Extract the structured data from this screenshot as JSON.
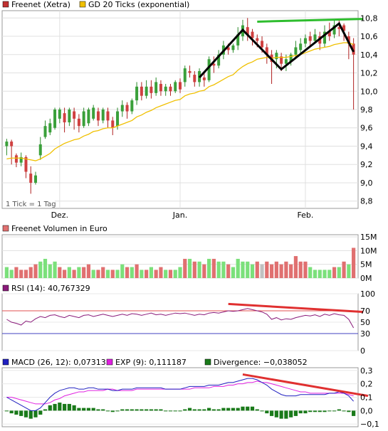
{
  "chart_data": [
    {
      "type": "candlestick",
      "legend": [
        {
          "label": "Freenet (Xetra)",
          "color": "#c03030"
        },
        {
          "label": "GD 20 Ticks (exponential)",
          "color": "#f0c000"
        }
      ],
      "tick_note": "1 Tick = 1 Tag",
      "y_ticks": [
        "10,8",
        "10,6",
        "10,4",
        "10,2",
        "10,0",
        "9,8",
        "9,6",
        "9,4",
        "9,2",
        "9,0",
        "8,8"
      ],
      "ylim": [
        8.72,
        10.88
      ],
      "x_ticks": [
        {
          "label": "Dez.",
          "index": 11
        },
        {
          "label": "Jan.",
          "index": 36
        },
        {
          "label": "Feb.",
          "index": 62
        }
      ],
      "candles": [
        [
          9.4,
          9.45,
          9.3,
          9.48
        ],
        [
          9.45,
          9.4,
          9.2,
          9.47
        ],
        [
          9.3,
          9.22,
          9.17,
          9.32
        ],
        [
          9.22,
          9.28,
          9.18,
          9.33
        ],
        [
          9.28,
          9.12,
          9.05,
          9.3
        ],
        [
          9.1,
          9.0,
          8.88,
          9.18
        ],
        [
          9.0,
          9.08,
          8.98,
          9.12
        ],
        [
          9.3,
          9.42,
          9.25,
          9.5
        ],
        [
          9.5,
          9.62,
          9.48,
          9.68
        ],
        [
          9.55,
          9.65,
          9.52,
          9.7
        ],
        [
          9.6,
          9.8,
          9.58,
          9.82
        ],
        [
          9.7,
          9.8,
          9.65,
          9.82
        ],
        [
          9.76,
          9.66,
          9.55,
          9.82
        ],
        [
          9.66,
          9.8,
          9.62,
          9.82
        ],
        [
          9.78,
          9.7,
          9.58,
          9.82
        ],
        [
          9.7,
          9.62,
          9.55,
          9.75
        ],
        [
          9.62,
          9.78,
          9.6,
          9.82
        ],
        [
          9.65,
          9.8,
          9.62,
          9.82
        ],
        [
          9.7,
          9.82,
          9.68,
          9.85
        ],
        [
          9.78,
          9.68,
          9.62,
          9.82
        ],
        [
          9.68,
          9.8,
          9.65,
          9.82
        ],
        [
          9.78,
          9.68,
          9.6,
          9.82
        ],
        [
          9.68,
          9.6,
          9.52,
          9.72
        ],
        [
          9.62,
          9.78,
          9.58,
          9.82
        ],
        [
          9.78,
          9.85,
          9.72,
          9.9
        ],
        [
          9.85,
          9.78,
          9.7,
          9.88
        ],
        [
          9.78,
          9.9,
          9.75,
          9.92
        ],
        [
          9.9,
          10.05,
          9.85,
          10.1
        ],
        [
          10.05,
          9.95,
          9.9,
          10.1
        ],
        [
          9.95,
          10.05,
          9.92,
          10.12
        ],
        [
          10.05,
          9.98,
          9.92,
          10.12
        ],
        [
          9.98,
          10.1,
          9.95,
          10.15
        ],
        [
          10.08,
          10.0,
          9.95,
          10.12
        ],
        [
          10.0,
          10.05,
          9.95,
          10.08
        ],
        [
          10.05,
          10.0,
          9.95,
          10.08
        ],
        [
          10.0,
          10.1,
          9.98,
          10.12
        ],
        [
          10.1,
          10.02,
          9.98,
          10.14
        ],
        [
          10.1,
          10.25,
          10.05,
          10.28
        ],
        [
          10.22,
          10.2,
          10.15,
          10.28
        ],
        [
          10.18,
          10.1,
          10.05,
          10.22
        ],
        [
          10.1,
          10.22,
          10.05,
          10.25
        ],
        [
          10.15,
          10.12,
          10.05,
          10.2
        ],
        [
          10.12,
          10.35,
          10.1,
          10.38
        ],
        [
          10.3,
          10.28,
          10.2,
          10.38
        ],
        [
          10.28,
          10.4,
          10.25,
          10.45
        ],
        [
          10.4,
          10.5,
          10.35,
          10.55
        ],
        [
          10.48,
          10.45,
          10.4,
          10.52
        ],
        [
          10.45,
          10.5,
          10.42,
          10.52
        ],
        [
          10.5,
          10.62,
          10.45,
          10.7
        ],
        [
          10.6,
          10.72,
          10.55,
          10.78
        ],
        [
          10.7,
          10.62,
          10.55,
          10.8
        ],
        [
          10.65,
          10.58,
          10.5,
          10.68
        ],
        [
          10.58,
          10.55,
          10.48,
          10.62
        ],
        [
          10.55,
          10.48,
          10.42,
          10.6
        ],
        [
          10.48,
          10.4,
          10.3,
          10.52
        ],
        [
          10.4,
          10.32,
          10.08,
          10.45
        ],
        [
          10.35,
          10.42,
          10.25,
          10.45
        ],
        [
          10.38,
          10.3,
          10.22,
          10.42
        ],
        [
          10.3,
          10.35,
          10.22,
          10.4
        ],
        [
          10.32,
          10.4,
          10.28,
          10.42
        ],
        [
          10.4,
          10.48,
          10.35,
          10.55
        ],
        [
          10.45,
          10.52,
          10.4,
          10.58
        ],
        [
          10.52,
          10.58,
          10.48,
          10.62
        ],
        [
          10.6,
          10.55,
          10.5,
          10.65
        ],
        [
          10.55,
          10.62,
          10.52,
          10.68
        ],
        [
          10.6,
          10.52,
          10.45,
          10.65
        ],
        [
          10.52,
          10.65,
          10.48,
          10.72
        ],
        [
          10.65,
          10.6,
          10.55,
          10.75
        ],
        [
          10.62,
          10.72,
          10.58,
          10.78
        ],
        [
          10.7,
          10.68,
          10.6,
          10.78
        ],
        [
          10.72,
          10.66,
          10.55,
          10.74
        ],
        [
          10.6,
          10.52,
          10.35,
          10.65
        ],
        [
          10.52,
          10.4,
          9.8,
          10.58
        ]
      ],
      "ema": [
        9.26,
        9.27,
        9.27,
        9.27,
        9.26,
        9.25,
        9.24,
        9.26,
        9.29,
        9.32,
        9.37,
        9.4,
        9.43,
        9.45,
        9.47,
        9.48,
        9.51,
        9.53,
        9.56,
        9.57,
        9.59,
        9.6,
        9.6,
        9.62,
        9.64,
        9.66,
        9.68,
        9.72,
        9.74,
        9.77,
        9.79,
        9.82,
        9.84,
        9.86,
        9.88,
        9.9,
        9.91,
        9.95,
        9.97,
        9.98,
        10.0,
        10.01,
        10.05,
        10.07,
        10.1,
        10.13,
        10.16,
        10.18,
        10.23,
        10.27,
        10.3,
        10.32,
        10.35,
        10.36,
        10.37,
        10.36,
        10.37,
        10.37,
        10.37,
        10.38,
        10.39,
        10.4,
        10.42,
        10.44,
        10.46,
        10.47,
        10.48,
        10.49,
        10.51,
        10.52,
        10.53,
        10.53,
        10.51
      ],
      "annotations": [
        {
          "kind": "trendline",
          "color": "#2ebd2e",
          "from": [
            52,
            10.76
          ],
          "to": [
            74,
            10.79
          ]
        },
        {
          "kind": "pattern",
          "color": "#000000",
          "points": [
            [
              40,
              10.15
            ],
            [
              49,
              10.67
            ],
            [
              57,
              10.24
            ],
            [
              69,
              10.74
            ],
            [
              72,
              10.43
            ]
          ]
        }
      ]
    },
    {
      "type": "bar",
      "title": "Freenet Volumen in Euro",
      "y_ticks": [
        "15M",
        "10M",
        "5M",
        "0M"
      ],
      "ylim": [
        0,
        15
      ],
      "values_millions": [
        4,
        3,
        4,
        3,
        3,
        4,
        5,
        6,
        7,
        5,
        6,
        4,
        3,
        4,
        3,
        4,
        4,
        5,
        3,
        3,
        4,
        3,
        3,
        3,
        5,
        4,
        4,
        5,
        3,
        3,
        4,
        3,
        4,
        3,
        3,
        3,
        4,
        7,
        7,
        6,
        6,
        5,
        7,
        7,
        6,
        6,
        5,
        4,
        7,
        6,
        6,
        5,
        6,
        5,
        6,
        5,
        6,
        5,
        6,
        5,
        8,
        6,
        6,
        4,
        3,
        3,
        3,
        3,
        4,
        4,
        6,
        5,
        11
      ],
      "colors_code": "ggrrrrrggggrrgrgrrgrrgrggrgrgrgrrgrggrgrgrgrggrgggggrxrrrrrrrrrgggggrgrgr"
    },
    {
      "type": "line",
      "title": "RSI (14): 40,767329",
      "y_ticks": [
        "100",
        "70",
        "50",
        "30",
        "0"
      ],
      "ylim": [
        0,
        100
      ],
      "reference_lines": [
        {
          "value": 70,
          "color": "#e05050"
        },
        {
          "value": 30,
          "color": "#4040c0"
        }
      ],
      "values": [
        55,
        50,
        48,
        45,
        52,
        50,
        56,
        60,
        58,
        62,
        63,
        60,
        58,
        62,
        60,
        58,
        62,
        63,
        60,
        62,
        64,
        62,
        60,
        62,
        64,
        62,
        65,
        64,
        62,
        64,
        66,
        63,
        64,
        62,
        64,
        66,
        65,
        66,
        64,
        62,
        64,
        63,
        66,
        67,
        66,
        68,
        70,
        69,
        70,
        72,
        74,
        72,
        70,
        68,
        64,
        55,
        58,
        54,
        56,
        55,
        58,
        60,
        62,
        61,
        63,
        60,
        64,
        62,
        65,
        63,
        62,
        55,
        40
      ],
      "annotation": {
        "kind": "trendline",
        "color": "#e03030",
        "from": [
          46,
          82
        ],
        "to": [
          74,
          68
        ]
      }
    },
    {
      "type": "line",
      "legend": [
        {
          "label": "MACD (26, 12): 0,073135",
          "color": "#2020c0"
        },
        {
          "label": "EXP (9): 0,111187",
          "color": "#e020e0"
        },
        {
          "label": "Divergence: −0,038052",
          "color": "#1a7a1a"
        }
      ],
      "y_ticks": [
        "0,3",
        "0,2",
        "0,1",
        "0,0",
        "−0,1"
      ],
      "ylim": [
        -0.12,
        0.32
      ],
      "macd": [
        0.1,
        0.08,
        0.06,
        0.04,
        0.02,
        0.0,
        0.0,
        0.02,
        0.06,
        0.1,
        0.13,
        0.15,
        0.16,
        0.17,
        0.17,
        0.16,
        0.16,
        0.17,
        0.17,
        0.16,
        0.16,
        0.16,
        0.15,
        0.15,
        0.16,
        0.16,
        0.16,
        0.17,
        0.17,
        0.17,
        0.17,
        0.17,
        0.17,
        0.16,
        0.16,
        0.16,
        0.16,
        0.17,
        0.18,
        0.18,
        0.18,
        0.18,
        0.19,
        0.19,
        0.19,
        0.2,
        0.21,
        0.21,
        0.22,
        0.23,
        0.24,
        0.24,
        0.23,
        0.21,
        0.19,
        0.16,
        0.14,
        0.12,
        0.11,
        0.11,
        0.11,
        0.12,
        0.12,
        0.12,
        0.12,
        0.12,
        0.12,
        0.13,
        0.13,
        0.14,
        0.13,
        0.11,
        0.07
      ],
      "exp": [
        0.1,
        0.1,
        0.09,
        0.08,
        0.07,
        0.06,
        0.05,
        0.05,
        0.05,
        0.06,
        0.08,
        0.09,
        0.11,
        0.12,
        0.13,
        0.14,
        0.14,
        0.15,
        0.15,
        0.15,
        0.15,
        0.16,
        0.16,
        0.15,
        0.15,
        0.15,
        0.15,
        0.16,
        0.16,
        0.16,
        0.16,
        0.16,
        0.16,
        0.16,
        0.16,
        0.16,
        0.16,
        0.16,
        0.16,
        0.17,
        0.17,
        0.17,
        0.17,
        0.18,
        0.18,
        0.18,
        0.19,
        0.19,
        0.2,
        0.2,
        0.21,
        0.21,
        0.22,
        0.21,
        0.21,
        0.2,
        0.19,
        0.18,
        0.17,
        0.16,
        0.15,
        0.14,
        0.14,
        0.13,
        0.13,
        0.13,
        0.13,
        0.13,
        0.13,
        0.13,
        0.13,
        0.12,
        0.11
      ],
      "divergence": [
        0.0,
        -0.02,
        -0.03,
        -0.04,
        -0.05,
        -0.06,
        -0.05,
        -0.03,
        0.01,
        0.04,
        0.05,
        0.06,
        0.05,
        0.05,
        0.04,
        0.02,
        0.02,
        0.02,
        0.02,
        0.01,
        0.01,
        0.0,
        -0.01,
        0.0,
        0.01,
        0.01,
        0.01,
        0.01,
        0.01,
        0.01,
        0.01,
        0.01,
        0.01,
        0.0,
        0.0,
        0.0,
        0.0,
        0.01,
        0.02,
        0.01,
        0.01,
        0.01,
        0.02,
        0.01,
        0.01,
        0.02,
        0.02,
        0.02,
        0.02,
        0.03,
        0.03,
        0.03,
        0.01,
        0.0,
        -0.02,
        -0.04,
        -0.05,
        -0.06,
        -0.06,
        -0.05,
        -0.04,
        -0.02,
        -0.02,
        -0.01,
        -0.01,
        -0.01,
        -0.01,
        0.0,
        0.0,
        0.01,
        0.0,
        -0.01,
        -0.04
      ],
      "annotation": {
        "kind": "trendline",
        "color": "#e03030",
        "from": [
          49,
          0.27
        ],
        "to": [
          75,
          0.11
        ]
      }
    }
  ]
}
